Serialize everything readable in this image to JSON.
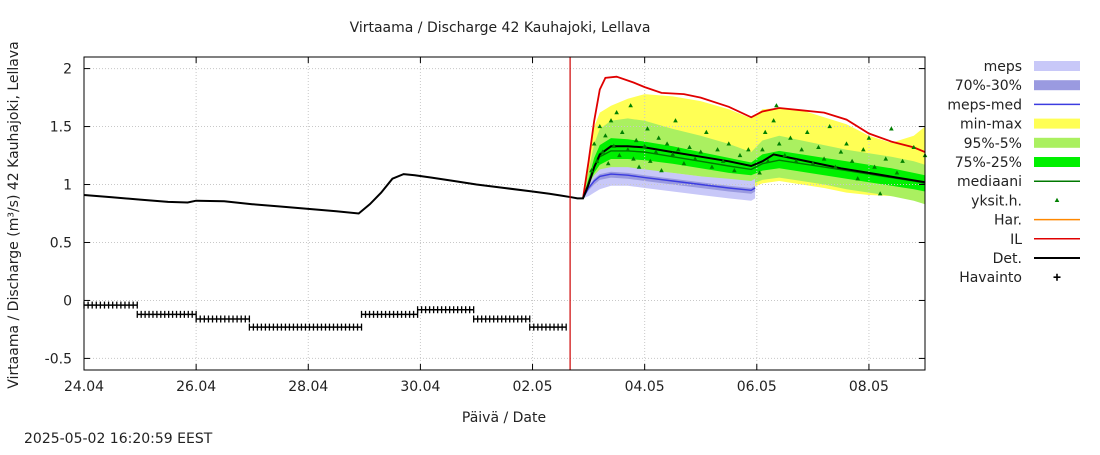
{
  "chart_data": {
    "type": "line",
    "title": "Virtaama / Discharge  42 Kauhajoki, Lellava",
    "xlabel": "Päivä / Date",
    "ylabel": "Virtaama / Discharge (m³/s)  42 Kauhajoki, Lellava",
    "ylim": [
      -0.6,
      2.1
    ],
    "xlim": [
      24.0,
      39.0
    ],
    "x_tick_labels": [
      "24.04",
      "26.04",
      "28.04",
      "30.04",
      "02.05",
      "04.05",
      "06.05",
      "08.05"
    ],
    "x_tick_values": [
      24,
      26,
      28,
      30,
      32,
      34,
      36,
      38
    ],
    "y_tick_labels": [
      "-0.5",
      "0",
      "0.5",
      "1",
      "1.5",
      "2"
    ],
    "y_tick_values": [
      -0.5,
      0,
      0.5,
      1,
      1.5,
      2
    ],
    "forecast_start": 32.67,
    "grid": true,
    "legend_position": "right",
    "footer": "2025-05-02 16:20:59 EEST",
    "colors": {
      "meps": "#c8c8f8",
      "meps_70_30": "#9a9ae0",
      "meps_med": "#3c3ce0",
      "min_max": "#ffff55",
      "p95_5": "#aaf060",
      "p75_25": "#00f000",
      "mediaani": "#007800",
      "yksit": "#008000",
      "har": "#ff8800",
      "il": "#e00000",
      "det": "#000000",
      "havainto": "#000000",
      "vline": "#cc0000"
    },
    "legend": [
      {
        "key": "meps",
        "label": "meps",
        "kind": "box"
      },
      {
        "key": "meps_70_30",
        "label": "70%-30%",
        "kind": "box"
      },
      {
        "key": "meps_med",
        "label": "meps-med",
        "kind": "line"
      },
      {
        "key": "min_max",
        "label": "min-max",
        "kind": "box"
      },
      {
        "key": "p95_5",
        "label": "95%-5%",
        "kind": "box"
      },
      {
        "key": "p75_25",
        "label": "75%-25%",
        "kind": "box"
      },
      {
        "key": "mediaani",
        "label": "mediaani",
        "kind": "line"
      },
      {
        "key": "yksit",
        "label": "yksit.h.",
        "kind": "tri"
      },
      {
        "key": "har",
        "label": "Har.",
        "kind": "line"
      },
      {
        "key": "il",
        "label": "IL",
        "kind": "line"
      },
      {
        "key": "det",
        "label": "Det.",
        "kind": "thickline"
      },
      {
        "key": "havainto",
        "label": "Havainto",
        "kind": "plus"
      }
    ],
    "series": {
      "det": {
        "x": [
          24.0,
          24.5,
          25.0,
          25.5,
          25.85,
          26.0,
          26.5,
          27.0,
          27.5,
          28.0,
          28.5,
          28.9,
          29.1,
          29.3,
          29.5,
          29.7,
          29.9,
          30.2,
          30.6,
          31.0,
          31.5,
          32.0,
          32.3,
          32.5,
          32.7,
          32.8,
          32.9,
          33.0,
          33.1,
          33.2,
          33.4,
          33.7,
          34.0,
          34.5,
          35.0,
          35.5,
          35.9,
          36.1,
          36.3,
          36.7,
          37.0,
          37.5,
          38.0,
          38.5,
          39.0
        ],
        "y": [
          0.91,
          0.89,
          0.87,
          0.85,
          0.845,
          0.86,
          0.855,
          0.83,
          0.81,
          0.79,
          0.77,
          0.75,
          0.83,
          0.93,
          1.05,
          1.09,
          1.08,
          1.06,
          1.03,
          1.0,
          0.97,
          0.94,
          0.92,
          0.905,
          0.89,
          0.88,
          0.88,
          1.0,
          1.15,
          1.26,
          1.33,
          1.33,
          1.32,
          1.28,
          1.24,
          1.2,
          1.16,
          1.2,
          1.26,
          1.22,
          1.19,
          1.14,
          1.1,
          1.06,
          1.02
        ]
      },
      "il": {
        "x": [
          32.9,
          33.0,
          33.1,
          33.2,
          33.3,
          33.5,
          33.8,
          34.0,
          34.3,
          34.7,
          35.0,
          35.5,
          35.9,
          36.1,
          36.4,
          36.8,
          37.2,
          37.6,
          38.0,
          38.4,
          38.8,
          39.0
        ],
        "y": [
          0.88,
          1.2,
          1.55,
          1.82,
          1.92,
          1.93,
          1.88,
          1.84,
          1.79,
          1.78,
          1.75,
          1.67,
          1.58,
          1.63,
          1.66,
          1.64,
          1.62,
          1.56,
          1.44,
          1.37,
          1.32,
          1.28
        ]
      },
      "min_max": {
        "x": [
          32.9,
          33.0,
          33.1,
          33.2,
          33.4,
          33.7,
          34.0,
          34.5,
          35.0,
          35.5,
          35.9,
          36.1,
          36.4,
          36.8,
          37.2,
          37.6,
          38.0,
          38.4,
          38.8,
          39.0
        ],
        "low": [
          0.88,
          0.92,
          0.96,
          0.99,
          1.06,
          1.09,
          1.1,
          1.08,
          1.04,
          1.0,
          0.97,
          1.01,
          1.03,
          1.0,
          0.97,
          0.93,
          0.91,
          0.9,
          0.88,
          0.86
        ],
        "high": [
          0.88,
          1.2,
          1.5,
          1.62,
          1.68,
          1.74,
          1.78,
          1.76,
          1.72,
          1.65,
          1.57,
          1.65,
          1.66,
          1.64,
          1.58,
          1.52,
          1.42,
          1.36,
          1.42,
          1.5
        ]
      },
      "p95_5": {
        "x": [
          32.9,
          33.0,
          33.1,
          33.2,
          33.4,
          33.7,
          34.0,
          34.5,
          35.0,
          35.5,
          35.9,
          36.1,
          36.4,
          36.8,
          37.2,
          37.6,
          38.0,
          38.4,
          38.8,
          39.0
        ],
        "low": [
          0.88,
          0.94,
          1.0,
          1.05,
          1.1,
          1.12,
          1.12,
          1.1,
          1.07,
          1.03,
          1.0,
          1.04,
          1.06,
          1.03,
          1.0,
          0.96,
          0.93,
          0.9,
          0.86,
          0.83
        ],
        "high": [
          0.88,
          1.12,
          1.35,
          1.48,
          1.55,
          1.57,
          1.55,
          1.48,
          1.42,
          1.35,
          1.28,
          1.38,
          1.42,
          1.38,
          1.34,
          1.3,
          1.27,
          1.24,
          1.2,
          1.17
        ]
      },
      "p75_25": {
        "x": [
          32.9,
          33.0,
          33.1,
          33.2,
          33.4,
          33.7,
          34.0,
          34.5,
          35.0,
          35.5,
          35.9,
          36.1,
          36.4,
          36.8,
          37.2,
          37.6,
          38.0,
          38.4,
          38.8,
          39.0
        ],
        "low": [
          0.88,
          1.0,
          1.1,
          1.17,
          1.22,
          1.22,
          1.21,
          1.18,
          1.14,
          1.1,
          1.08,
          1.12,
          1.14,
          1.11,
          1.08,
          1.05,
          1.02,
          0.99,
          0.96,
          0.94
        ],
        "high": [
          0.88,
          1.05,
          1.23,
          1.34,
          1.4,
          1.39,
          1.37,
          1.33,
          1.28,
          1.23,
          1.19,
          1.26,
          1.29,
          1.26,
          1.23,
          1.2,
          1.17,
          1.14,
          1.1,
          1.08
        ]
      },
      "mediaani": {
        "x": [
          32.9,
          33.0,
          33.1,
          33.2,
          33.4,
          33.7,
          34.0,
          34.5,
          35.0,
          35.5,
          35.9,
          36.1,
          36.4,
          36.8,
          37.2,
          37.6,
          38.0,
          38.4,
          38.8,
          39.0
        ],
        "y": [
          0.88,
          1.02,
          1.15,
          1.24,
          1.29,
          1.29,
          1.28,
          1.24,
          1.2,
          1.16,
          1.13,
          1.18,
          1.21,
          1.18,
          1.15,
          1.12,
          1.09,
          1.06,
          1.03,
          1.01
        ]
      },
      "meps": {
        "x": [
          32.9,
          33.0,
          33.1,
          33.2,
          33.4,
          33.7,
          34.0,
          34.5,
          35.0,
          35.5,
          35.9,
          35.97
        ],
        "low": [
          0.88,
          0.9,
          0.93,
          0.96,
          0.99,
          0.99,
          0.97,
          0.94,
          0.91,
          0.88,
          0.86,
          0.88
        ],
        "high": [
          0.88,
          1.0,
          1.08,
          1.13,
          1.15,
          1.15,
          1.13,
          1.1,
          1.07,
          1.05,
          1.03,
          1.05
        ]
      },
      "meps_70_30": {
        "x": [
          32.9,
          33.0,
          33.1,
          33.2,
          33.4,
          33.7,
          34.0,
          34.5,
          35.0,
          35.5,
          35.9,
          35.97
        ],
        "low": [
          0.88,
          0.95,
          1.0,
          1.04,
          1.06,
          1.05,
          1.03,
          1.0,
          0.97,
          0.94,
          0.92,
          0.94
        ],
        "high": [
          0.88,
          0.98,
          1.05,
          1.09,
          1.11,
          1.1,
          1.08,
          1.05,
          1.02,
          0.99,
          0.97,
          0.99
        ]
      },
      "meps_med": {
        "x": [
          32.9,
          33.0,
          33.1,
          33.2,
          33.4,
          33.7,
          34.0,
          34.5,
          35.0,
          35.5,
          35.9,
          35.97
        ],
        "y": [
          0.88,
          0.97,
          1.03,
          1.07,
          1.09,
          1.08,
          1.06,
          1.03,
          1.0,
          0.97,
          0.95,
          0.97
        ]
      },
      "yksit": {
        "x": [
          33.05,
          33.1,
          33.15,
          33.2,
          33.25,
          33.3,
          33.35,
          33.4,
          33.45,
          33.5,
          33.55,
          33.6,
          33.7,
          33.75,
          33.8,
          33.85,
          33.9,
          34.0,
          34.05,
          34.1,
          34.2,
          34.25,
          34.3,
          34.4,
          34.5,
          34.55,
          34.6,
          34.7,
          34.8,
          34.9,
          35.0,
          35.1,
          35.2,
          35.3,
          35.4,
          35.5,
          35.6,
          35.7,
          35.85,
          36.05,
          36.1,
          36.15,
          36.2,
          36.3,
          36.35,
          36.4,
          36.5,
          36.6,
          36.7,
          36.8,
          36.9,
          37.0,
          37.1,
          37.2,
          37.3,
          37.4,
          37.5,
          37.6,
          37.7,
          37.8,
          37.9,
          38.0,
          38.1,
          38.2,
          38.3,
          38.4,
          38.5,
          38.6,
          38.8,
          39.0
        ],
        "y": [
          1.12,
          1.35,
          1.2,
          1.5,
          1.28,
          1.42,
          1.18,
          1.55,
          1.33,
          1.62,
          1.25,
          1.45,
          1.3,
          1.68,
          1.22,
          1.38,
          1.15,
          1.33,
          1.48,
          1.2,
          1.28,
          1.4,
          1.12,
          1.35,
          1.26,
          1.55,
          1.3,
          1.18,
          1.32,
          1.22,
          1.28,
          1.45,
          1.15,
          1.3,
          1.2,
          1.35,
          1.12,
          1.25,
          1.3,
          1.1,
          1.3,
          1.45,
          1.2,
          1.55,
          1.68,
          1.35,
          1.25,
          1.4,
          1.2,
          1.3,
          1.45,
          1.18,
          1.32,
          1.22,
          1.5,
          1.15,
          1.28,
          1.35,
          1.2,
          1.05,
          1.3,
          1.4,
          1.15,
          0.92,
          1.22,
          1.48,
          1.1,
          1.2,
          1.32,
          1.25
        ]
      },
      "havainto": {
        "segments": [
          {
            "x0": 24.0,
            "x1": 24.95,
            "y": -0.04
          },
          {
            "x0": 24.95,
            "x1": 26.0,
            "y": -0.12
          },
          {
            "x0": 26.0,
            "x1": 26.95,
            "y": -0.16
          },
          {
            "x0": 26.95,
            "x1": 28.95,
            "y": -0.23
          },
          {
            "x0": 28.95,
            "x1": 29.95,
            "y": -0.12
          },
          {
            "x0": 29.95,
            "x1": 30.95,
            "y": -0.08
          },
          {
            "x0": 30.95,
            "x1": 31.95,
            "y": -0.16
          },
          {
            "x0": 31.95,
            "x1": 32.6,
            "y": -0.23
          }
        ]
      }
    }
  }
}
